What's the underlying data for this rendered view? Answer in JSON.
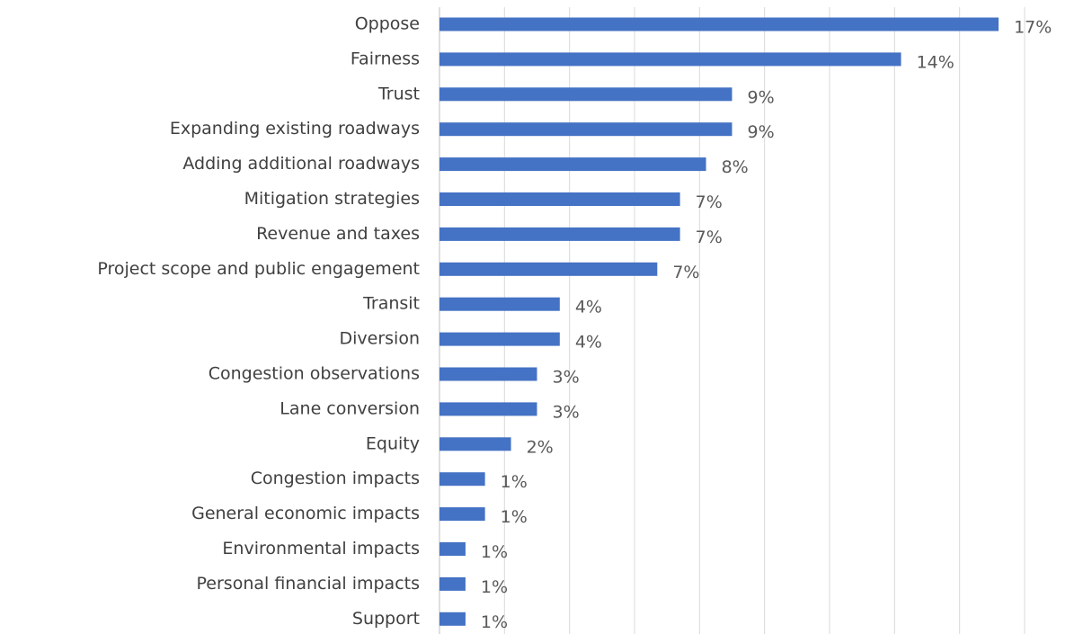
{
  "chart_data": {
    "type": "bar",
    "orientation": "horizontal",
    "categories": [
      "Oppose",
      "Fairness",
      "Trust",
      "Expanding existing roadways",
      "Adding additional roadways",
      "Mitigation strategies",
      "Revenue and taxes",
      "Project scope and public engagement",
      "Transit",
      "Diversion",
      "Congestion observations",
      "Lane conversion",
      "Equity",
      "Congestion impacts",
      "General economic impacts",
      "Environmental impacts",
      "Personal financial impacts",
      "Support"
    ],
    "values": [
      17.2,
      14.2,
      9.0,
      9.0,
      8.2,
      7.4,
      7.4,
      6.7,
      3.7,
      3.7,
      3.0,
      3.0,
      2.2,
      1.4,
      1.4,
      0.8,
      0.8,
      0.8
    ],
    "value_labels": [
      "17%",
      "14%",
      "9%",
      "9%",
      "8%",
      "7%",
      "7%",
      "7%",
      "4%",
      "4%",
      "3%",
      "3%",
      "2%",
      "1%",
      "1%",
      "1%",
      "1%",
      "1%"
    ],
    "color": "#4472c4",
    "xlim": [
      0,
      18
    ],
    "xticks": [
      0,
      2,
      4,
      6,
      8,
      10,
      12,
      14,
      16,
      18
    ],
    "grid": true
  }
}
